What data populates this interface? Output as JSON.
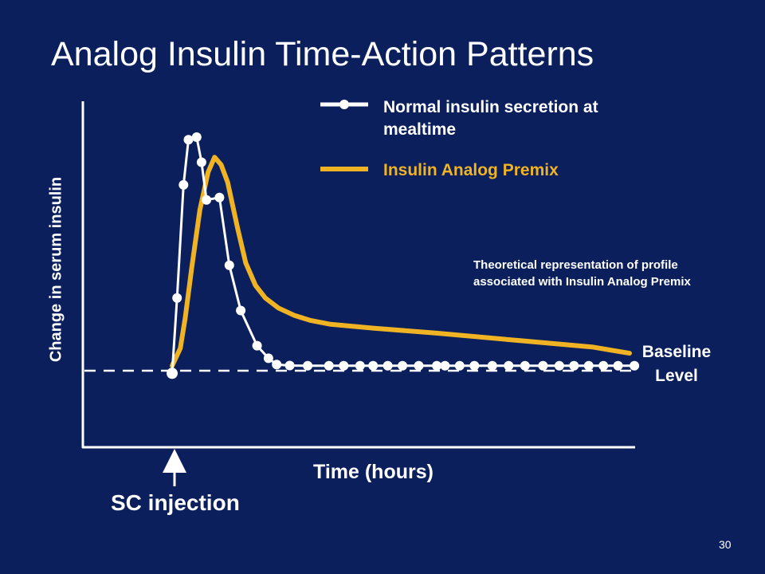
{
  "slide": {
    "title": "Analog Insulin Time-Action Patterns",
    "page_number": "30",
    "background_color": "#0b1f5c"
  },
  "chart_data": {
    "type": "line",
    "title": "Analog Insulin Time-Action Patterns",
    "xlabel": "Time (hours)",
    "ylabel": "Change in serum insulin",
    "ylim": [
      0,
      100
    ],
    "grid": false,
    "legend_placement": "top-right",
    "series": [
      {
        "name": "Normal insulin secretion at mealtime",
        "color": "#ffffff",
        "marker": "circle",
        "points": [
          [
            0,
            -2
          ],
          [
            0.3,
            28
          ],
          [
            0.7,
            73
          ],
          [
            1,
            91
          ],
          [
            1.5,
            92
          ],
          [
            1.8,
            82
          ],
          [
            2.1,
            67
          ],
          [
            2.9,
            68
          ],
          [
            3.5,
            41
          ],
          [
            4.2,
            23
          ],
          [
            5.2,
            9
          ],
          [
            5.9,
            4
          ],
          [
            6.4,
            1.5
          ],
          [
            7.2,
            1.1
          ],
          [
            8.3,
            1
          ],
          [
            9.6,
            1
          ],
          [
            10.5,
            1
          ],
          [
            11.5,
            1
          ],
          [
            12.3,
            1
          ],
          [
            13.2,
            1
          ],
          [
            14.1,
            1
          ],
          [
            15.1,
            1
          ],
          [
            16.2,
            1
          ],
          [
            16.7,
            1
          ],
          [
            17.6,
            1
          ],
          [
            18.5,
            1
          ],
          [
            19.6,
            1
          ],
          [
            20.6,
            1
          ],
          [
            21.6,
            1
          ],
          [
            22.7,
            1
          ],
          [
            23.7,
            1
          ],
          [
            24.6,
            1
          ],
          [
            25.5,
            1
          ],
          [
            26.4,
            1
          ],
          [
            27.3,
            1
          ],
          [
            28.3,
            1
          ]
        ]
      },
      {
        "name": "Insulin Analog Premix",
        "color": "#f0b323",
        "marker": "none",
        "points": [
          [
            0,
            1
          ],
          [
            0.5,
            8
          ],
          [
            0.8,
            20
          ],
          [
            1.2,
            40
          ],
          [
            1.7,
            63
          ],
          [
            2.2,
            78
          ],
          [
            2.6,
            84
          ],
          [
            3,
            81
          ],
          [
            3.4,
            74
          ],
          [
            4,
            56
          ],
          [
            4.5,
            42
          ],
          [
            5.1,
            33
          ],
          [
            5.7,
            28
          ],
          [
            6.5,
            24
          ],
          [
            7.5,
            21
          ],
          [
            8.5,
            19
          ],
          [
            9.7,
            17.5
          ],
          [
            12.3,
            16
          ],
          [
            16.2,
            14
          ],
          [
            21.3,
            11
          ],
          [
            25.7,
            8.5
          ],
          [
            28,
            6
          ]
        ]
      }
    ],
    "annotations": {
      "baseline": "Baseline Level",
      "injection": "SC injection",
      "note": "Theoretical representation of profile associated with Insulin Analog Premix"
    }
  },
  "legend": {
    "items": [
      {
        "label": "Normal insulin secretion at mealtime"
      },
      {
        "label": "Insulin Analog Premix"
      }
    ]
  }
}
